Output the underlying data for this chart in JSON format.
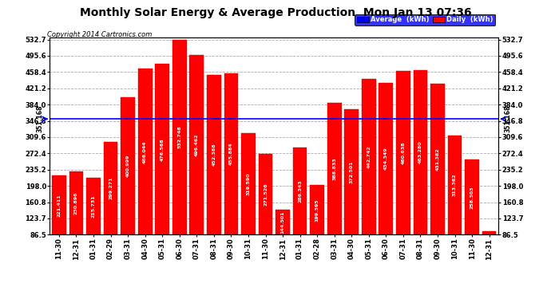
{
  "title": "Monthly Solar Energy & Average Production  Mon Jan 13 07:36",
  "copyright": "Copyright 2014 Cartronics.com",
  "categories": [
    "11-30",
    "12-31",
    "01-31",
    "02-29",
    "03-31",
    "04-30",
    "05-31",
    "06-30",
    "07-31",
    "08-31",
    "09-30",
    "10-31",
    "11-30",
    "12-31",
    "01-31",
    "02-28",
    "03-31",
    "04-30",
    "05-31",
    "06-30",
    "07-31",
    "08-31",
    "09-30",
    "10-31",
    "11-30",
    "12-31"
  ],
  "values": [
    221.411,
    230.896,
    215.731,
    299.271,
    400.999,
    466.044,
    476.568,
    532.748,
    496.462,
    452.388,
    455.884,
    319.59,
    271.526,
    144.501,
    286.343,
    199.395,
    388.833,
    372.501,
    442.742,
    434.349,
    460.638,
    463.28,
    431.382,
    313.362,
    258.303,
    95.214
  ],
  "average": 351.168,
  "bar_color": "#FF0000",
  "average_line_color": "#0000FF",
  "background_color": "#FFFFFF",
  "plot_bg_color": "#FFFFFF",
  "grid_color": "#AAAAAA",
  "ylim_min": 86.5,
  "ylim_max": 532.7,
  "ytick_step": 37.2,
  "yticks": [
    86.5,
    123.7,
    160.8,
    198.0,
    235.2,
    272.4,
    309.6,
    346.8,
    384.0,
    421.2,
    458.4,
    495.6,
    532.7
  ],
  "avg_label": "351.168",
  "legend_avg_text": "Average  (kWh)",
  "legend_daily_text": "Daily  (kWh)",
  "legend_avg_bg": "#0000FF",
  "legend_daily_bg": "#FF0000",
  "title_fontsize": 10,
  "copyright_fontsize": 6,
  "tick_fontsize": 6,
  "bar_label_fontsize": 4.5,
  "bar_width": 0.82
}
